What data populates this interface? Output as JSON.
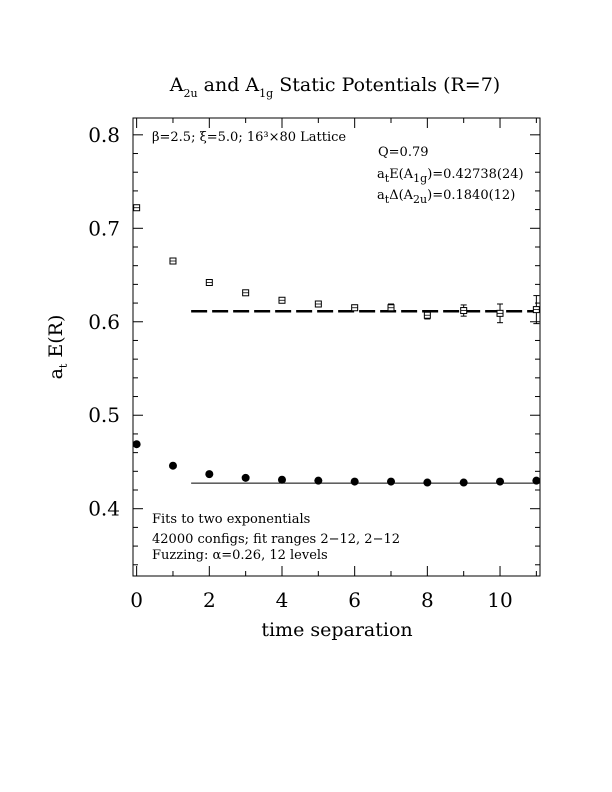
{
  "chart_data": {
    "type": "scatter",
    "title": {
      "a": "A",
      "a_sub": "2u",
      "mid": " and A",
      "b_sub": "1g",
      "end": " Static Potentials (R=7)"
    },
    "xlabel": "time separation",
    "ylabel": {
      "main": "a",
      "sub": "t",
      "rest": " E(R)"
    },
    "xlim": [
      -0.1,
      11.1
    ],
    "ylim": [
      0.328,
      0.818
    ],
    "xticks": [
      0,
      2,
      4,
      6,
      8,
      10
    ],
    "xtick_labels": [
      "0",
      "2",
      "4",
      "6",
      "8",
      "10"
    ],
    "yticks": [
      0.4,
      0.5,
      0.6,
      0.7,
      0.8
    ],
    "ytick_labels": [
      "0.4",
      "0.5",
      "0.6",
      "0.7",
      "0.8"
    ],
    "annotations": {
      "lattice": "β=2.5; ξ=5.0; 16³×80 Lattice",
      "q": "Q=0.79",
      "e_pre": "a",
      "e_sub_t": "t",
      "e_mid": "E(A",
      "e_sub_g": "1g",
      "e_val": ")=0.42738(24)",
      "d_pre": "a",
      "d_sub_t": "t",
      "d_mid": "Δ(A",
      "d_sub_u": "2u",
      "d_val": ")=0.1840(12)",
      "fits": "Fits to two exponentials",
      "configs": "42000 configs; fit ranges 2−12, 2−12",
      "fuzzing": "Fuzzing: α=0.26, 12 levels"
    },
    "series": [
      {
        "label": "A2u",
        "marker": "open-square",
        "points": [
          {
            "x": 0,
            "y": 0.722,
            "err": 0.002
          },
          {
            "x": 1,
            "y": 0.665,
            "err": 0.002
          },
          {
            "x": 2,
            "y": 0.642,
            "err": 0.002
          },
          {
            "x": 3,
            "y": 0.631,
            "err": 0.002
          },
          {
            "x": 4,
            "y": 0.623,
            "err": 0.002
          },
          {
            "x": 5,
            "y": 0.619,
            "err": 0.003
          },
          {
            "x": 6,
            "y": 0.615,
            "err": 0.003
          },
          {
            "x": 7,
            "y": 0.615,
            "err": 0.004
          },
          {
            "x": 8,
            "y": 0.607,
            "err": 0.004
          },
          {
            "x": 9,
            "y": 0.612,
            "err": 0.006
          },
          {
            "x": 10,
            "y": 0.609,
            "err": 0.01
          },
          {
            "x": 11,
            "y": 0.613,
            "err": 0.015
          }
        ],
        "fit": {
          "x_start": 1.5,
          "x_end": 11.1,
          "y": 0.6113,
          "style": "dashed"
        }
      },
      {
        "label": "A1g",
        "marker": "filled-circle",
        "points": [
          {
            "x": 0,
            "y": 0.469
          },
          {
            "x": 1,
            "y": 0.446
          },
          {
            "x": 2,
            "y": 0.437
          },
          {
            "x": 3,
            "y": 0.433
          },
          {
            "x": 4,
            "y": 0.431
          },
          {
            "x": 5,
            "y": 0.43
          },
          {
            "x": 6,
            "y": 0.429
          },
          {
            "x": 7,
            "y": 0.429
          },
          {
            "x": 8,
            "y": 0.428
          },
          {
            "x": 9,
            "y": 0.428
          },
          {
            "x": 10,
            "y": 0.429
          },
          {
            "x": 11,
            "y": 0.43
          }
        ],
        "fit": {
          "x_start": 1.5,
          "x_end": 11.1,
          "y": 0.4274,
          "style": "solid"
        }
      }
    ]
  }
}
